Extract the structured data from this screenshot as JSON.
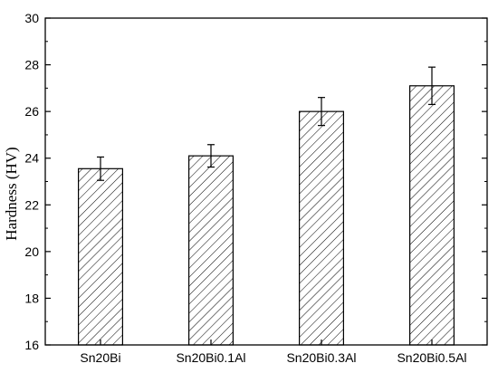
{
  "chart_data": {
    "type": "bar",
    "title": "",
    "xlabel": "",
    "ylabel": "Hardness (HV)",
    "ylim": [
      16,
      30
    ],
    "yticks": [
      16,
      18,
      20,
      22,
      24,
      26,
      28,
      30
    ],
    "categories": [
      "Sn20Bi",
      "Sn20Bi0.1Al",
      "Sn20Bi0.3Al",
      "Sn20Bi0.5Al"
    ],
    "values": [
      23.55,
      24.1,
      26.0,
      27.1
    ],
    "errors": [
      0.5,
      0.48,
      0.6,
      0.8
    ],
    "bar_fill": "diagonal-hatch",
    "grid": false,
    "colors": {
      "axis": "#000000",
      "bar_stroke": "#000000",
      "hatch": "#000000",
      "bar_fill": "#ffffff"
    }
  }
}
